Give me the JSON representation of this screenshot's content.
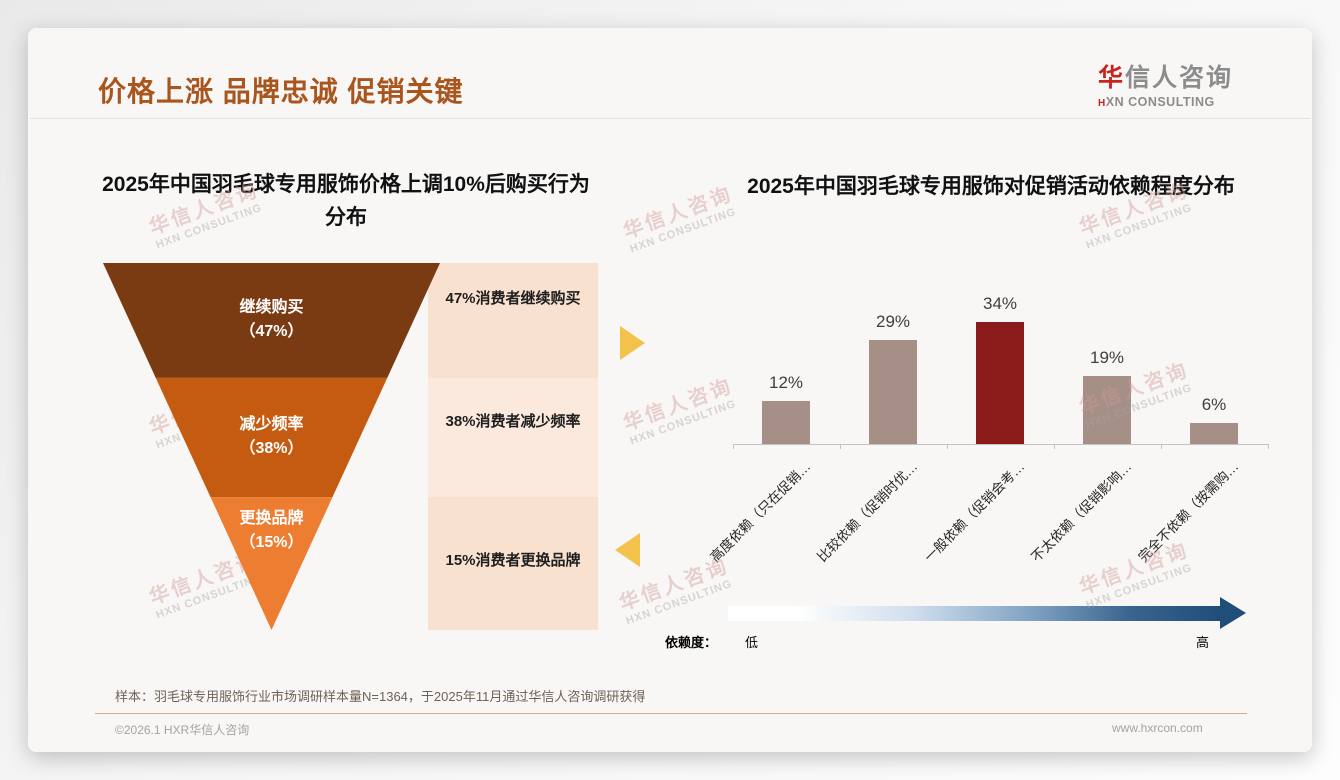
{
  "header": {
    "title": "价格上涨 品牌忠诚 促销关键"
  },
  "logo": {
    "cn_red": "华",
    "cn_rest": "信人咨询",
    "en_red": "H",
    "en_rest": "XN CONSULTING"
  },
  "watermark": {
    "cn": "华信人咨询",
    "en": "HXN CONSULTING"
  },
  "colors": {
    "title": "#a8551e",
    "bar_default": "#a68f86",
    "bar_highlight": "#8b1b1b",
    "gold_arrow": "#f3c24b",
    "panel_peach": "#f9e1d0",
    "panel_peach_light": "#fbe9dd",
    "gradient_dark_blue": "#1f4e79"
  },
  "chart_data": [
    {
      "type": "funnel",
      "title": "2025年中国羽毛球专用服饰价格上调10%后购买行为分布",
      "title_line1": "2025年中国羽毛球专用服饰价格上调10%后购买行为",
      "title_line2": "分布",
      "stages": [
        {
          "label": "继续购买",
          "value": 47,
          "value_label": "（47%）",
          "note": "47%消费者继续购买",
          "color": "#7b3b12"
        },
        {
          "label": "减少频率",
          "value": 38,
          "value_label": "（38%）",
          "note": "38%消费者减少频率",
          "color": "#c55a11"
        },
        {
          "label": "更换品牌",
          "value": 15,
          "value_label": "（15%）",
          "note": "15%消费者更换品牌",
          "color": "#ed7d31"
        }
      ]
    },
    {
      "type": "bar",
      "title": "2025年中国羽毛球专用服饰对促销活动依赖程度分布",
      "categories": [
        "高度依赖（只在促销…",
        "比较依赖（促销时优…",
        "一般依赖（促销会考…",
        "不太依赖（促销影响…",
        "完全不依赖（按需购…"
      ],
      "values": [
        12,
        29,
        34,
        19,
        6
      ],
      "value_labels": [
        "12%",
        "29%",
        "34%",
        "19%",
        "6%"
      ],
      "colors": [
        "#a68f86",
        "#a68f86",
        "#8b1b1b",
        "#a68f86",
        "#a68f86"
      ],
      "ylim": [
        0,
        40
      ],
      "grid": false,
      "legend_position": "none",
      "axis_note": {
        "label": "依赖度：",
        "low": "低",
        "high": "高"
      }
    }
  ],
  "footer": {
    "sample_note": "样本：羽毛球专用服饰行业市场调研样本量N=1364，于2025年11月通过华信人咨询调研获得",
    "copyright": "©2026.1 HXR华信人咨询",
    "website": "www.hxrcon.com"
  }
}
